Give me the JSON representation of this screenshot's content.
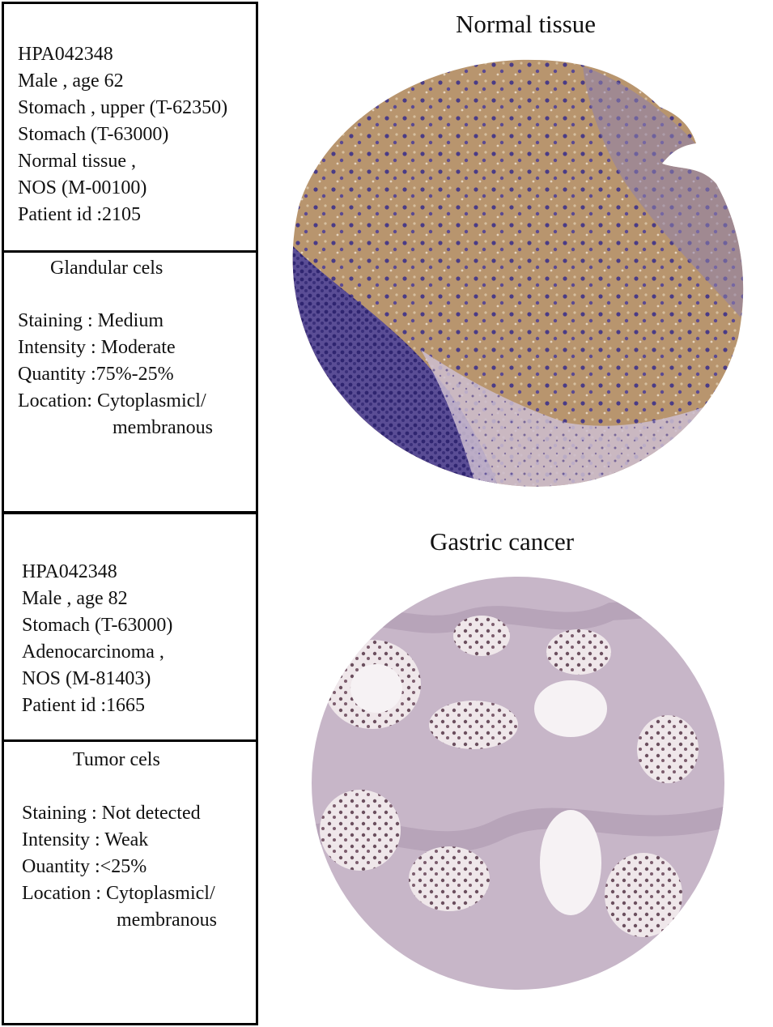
{
  "normal": {
    "title": "Normal tissue",
    "info": [
      "HPA042348",
      "Male , age 62",
      "Stomach , upper (T-62350)",
      "Stomach (T-63000)",
      "Normal tissue ,",
      "NOS (M-00100)",
      "Patient id :2105"
    ],
    "cell_heading": "Glandular cels",
    "staining": [
      "Staining : Medium",
      "Intensity : Moderate",
      "Quantity :75%-25%",
      "Location: Cytoplasmicl/",
      "membranous"
    ]
  },
  "cancer": {
    "title": "Gastric cancer",
    "info": [
      "HPA042348",
      "Male , age 82",
      "Stomach (T-63000)",
      "Adenocarcinoma ,",
      "NOS (M-81403)",
      "Patient id :1665"
    ],
    "cell_heading": "Tumor cels",
    "staining": [
      "Staining : Not detected",
      "Intensity : Weak",
      "Ouantity :<25%",
      "Location : Cytoplasmicl/",
      "membranous"
    ]
  },
  "colors": {
    "gland_brown": "#b8956e",
    "nuclei_purple": "#4a3c86",
    "stroma_pink": "#c7b6c8",
    "mucin_white": "#f6f2f4"
  }
}
